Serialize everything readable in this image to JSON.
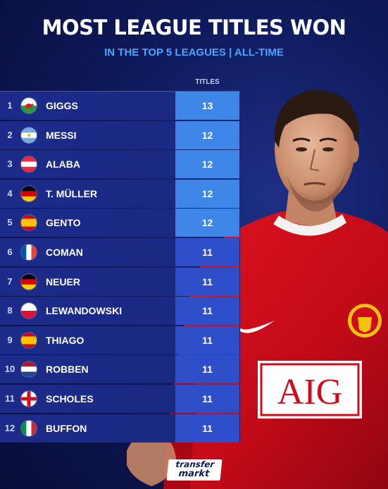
{
  "header": {
    "title": "MOST LEAGUE TITLES WON",
    "subtitle": "IN THE TOP 5 LEAGUES | ALL-TIME",
    "column_label": "TITLES"
  },
  "colors": {
    "background": "#0f1a5c",
    "row": "#1c2b8a",
    "value_highlight": "#3e86e8",
    "value_default": "#2e4fc9",
    "subtitle": "#46a6ff",
    "jersey_red": "#d10a1c"
  },
  "rows": [
    {
      "rank": "1",
      "flag": "wales-flag",
      "name": "GIGGS",
      "titles": "13"
    },
    {
      "rank": "2",
      "flag": "argentina-flag",
      "name": "MESSI",
      "titles": "12"
    },
    {
      "rank": "3",
      "flag": "austria-flag",
      "name": "ALABA",
      "titles": "12"
    },
    {
      "rank": "4",
      "flag": "germany-flag",
      "name": "T. MÜLLER",
      "titles": "12"
    },
    {
      "rank": "5",
      "flag": "spain-flag",
      "name": "GENTO",
      "titles": "12"
    },
    {
      "rank": "6",
      "flag": "france-flag",
      "name": "COMAN",
      "titles": "11"
    },
    {
      "rank": "7",
      "flag": "germany-flag",
      "name": "NEUER",
      "titles": "11"
    },
    {
      "rank": "8",
      "flag": "poland-flag",
      "name": "LEWANDOWSKI",
      "titles": "11"
    },
    {
      "rank": "9",
      "flag": "spain-flag",
      "name": "THIAGO",
      "titles": "11"
    },
    {
      "rank": "10",
      "flag": "netherlands-flag",
      "name": "ROBBEN",
      "titles": "11"
    },
    {
      "rank": "11",
      "flag": "england-flag",
      "name": "SCHOLES",
      "titles": "11"
    },
    {
      "rank": "12",
      "flag": "italy-flag",
      "name": "BUFFON",
      "titles": "11"
    }
  ],
  "jersey": {
    "sponsor": "AIG"
  },
  "logo": {
    "line1": "transfer",
    "line2": "markt"
  }
}
